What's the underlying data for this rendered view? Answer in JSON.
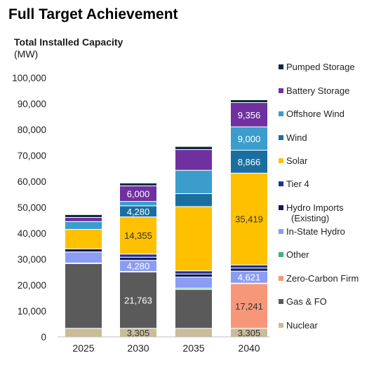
{
  "page_title": "Full Target Achievement",
  "chart_data": {
    "type": "bar",
    "stacked": true,
    "title": "Total Installed Capacity",
    "ylabel": "(MW)",
    "xlabel": "",
    "categories": [
      "2025",
      "2030",
      "2035",
      "2040"
    ],
    "ylim": [
      0,
      100000
    ],
    "yticks": [
      0,
      10000,
      20000,
      30000,
      40000,
      50000,
      60000,
      70000,
      80000,
      90000,
      100000
    ],
    "ytick_labels": [
      "0",
      "10,000",
      "20,000",
      "30,000",
      "40,000",
      "50,000",
      "60,000",
      "70,000",
      "80,000",
      "90,000",
      "100,000"
    ],
    "grid": false,
    "legend_position": "right",
    "series": [
      {
        "name": "Nuclear",
        "color": "#c9bc99",
        "values": [
          3305,
          3305,
          3305,
          3305
        ],
        "labels": [
          null,
          "3,305",
          null,
          "3,305"
        ]
      },
      {
        "name": "Gas & FO",
        "color": "#5a5a5a",
        "values": [
          25000,
          21763,
          15000,
          0
        ],
        "labels": [
          null,
          "21,763",
          null,
          null
        ]
      },
      {
        "name": "Zero-Carbon Firm",
        "color": "#f7977a",
        "values": [
          0,
          0,
          0,
          17241
        ],
        "labels": [
          null,
          null,
          null,
          "17,241"
        ]
      },
      {
        "name": "Other",
        "color": "#3cb371",
        "values": [
          200,
          200,
          500,
          200
        ],
        "labels": [
          null,
          null,
          null,
          null
        ]
      },
      {
        "name": "In-State Hydro",
        "color": "#8b9cf4",
        "values": [
          4280,
          4280,
          4280,
          4621
        ],
        "labels": [
          null,
          "4,280",
          null,
          "4,621"
        ]
      },
      {
        "name": "Hydro Imports\n(Existing)",
        "color": "#0f1a5c",
        "values": [
          1200,
          1200,
          1200,
          1200
        ],
        "labels": [
          null,
          null,
          null,
          null
        ]
      },
      {
        "name": "Tier 4",
        "color": "#1f2ea0",
        "values": [
          0,
          1200,
          1200,
          1200
        ],
        "labels": [
          null,
          null,
          null,
          null
        ]
      },
      {
        "name": "Solar",
        "color": "#ffc000",
        "values": [
          7500,
          14355,
          24800,
          35419
        ],
        "labels": [
          null,
          "14,355",
          null,
          "35,419"
        ]
      },
      {
        "name": "Wind",
        "color": "#1a6fa0",
        "values": [
          0,
          4280,
          5000,
          8866
        ],
        "labels": [
          null,
          "4,280",
          null,
          "8,866"
        ]
      },
      {
        "name": "Offshore Wind",
        "color": "#3a9dcc",
        "values": [
          3000,
          1700,
          9000,
          9000
        ],
        "labels": [
          null,
          null,
          null,
          "9,000"
        ]
      },
      {
        "name": "Battery Storage",
        "color": "#7030a0",
        "values": [
          1600,
          6000,
          8000,
          9356
        ],
        "labels": [
          null,
          "6,000",
          null,
          "9,356"
        ]
      },
      {
        "name": "Pumped Storage",
        "color": "#0b2a3c",
        "values": [
          1100,
          1100,
          1200,
          1100
        ],
        "labels": [
          null,
          null,
          null,
          null
        ]
      }
    ]
  }
}
